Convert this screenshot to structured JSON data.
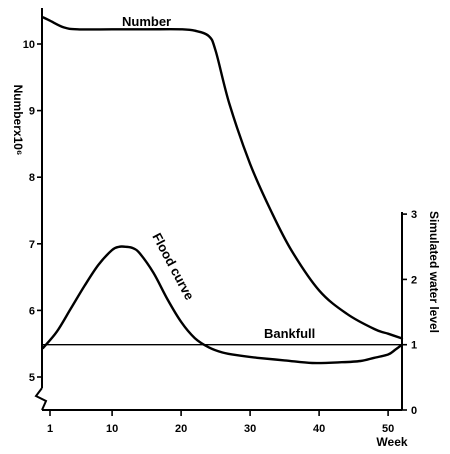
{
  "chart_data": {
    "type": "line",
    "x_label": "Week",
    "x_ticks": [
      1,
      10,
      20,
      30,
      40,
      50
    ],
    "xlim": [
      0,
      53
    ],
    "left_axis": {
      "label": "Numberx10⁶",
      "ticks": [
        5,
        6,
        7,
        8,
        9,
        10
      ],
      "ylim": [
        4.6,
        10.5
      ],
      "break_marker": true
    },
    "right_axis": {
      "label": "Simulated water level",
      "ticks": [
        0,
        1,
        2,
        3
      ],
      "ylim": [
        0,
        3
      ]
    },
    "annotations": {
      "number": "Number",
      "flood": "Flood curve",
      "bankfull": "Bankfull"
    },
    "number_curve": {
      "x": [
        0,
        1,
        3,
        5,
        10,
        15,
        20,
        22,
        24,
        25,
        27,
        30,
        33,
        36,
        40,
        44,
        48,
        50,
        52
      ],
      "y": [
        10.4,
        10.35,
        10.25,
        10.22,
        10.22,
        10.22,
        10.22,
        10.2,
        10.12,
        9.9,
        9.1,
        8.2,
        7.5,
        6.9,
        6.3,
        5.95,
        5.72,
        5.65,
        5.58
      ]
    },
    "flood_curve": {
      "x": [
        0,
        2,
        4,
        6,
        8,
        10,
        11,
        12,
        13,
        14,
        16,
        18,
        20,
        22,
        24,
        26,
        28,
        31,
        35,
        39,
        43,
        46,
        48,
        50,
        51,
        52
      ],
      "y": [
        0.95,
        1.2,
        1.55,
        1.9,
        2.22,
        2.45,
        2.5,
        2.5,
        2.48,
        2.4,
        2.1,
        1.7,
        1.35,
        1.1,
        0.96,
        0.88,
        0.84,
        0.8,
        0.76,
        0.72,
        0.73,
        0.75,
        0.8,
        0.85,
        0.92,
        1.0
      ]
    },
    "bankfull_level": 1,
    "grid": false,
    "legend": "none"
  }
}
